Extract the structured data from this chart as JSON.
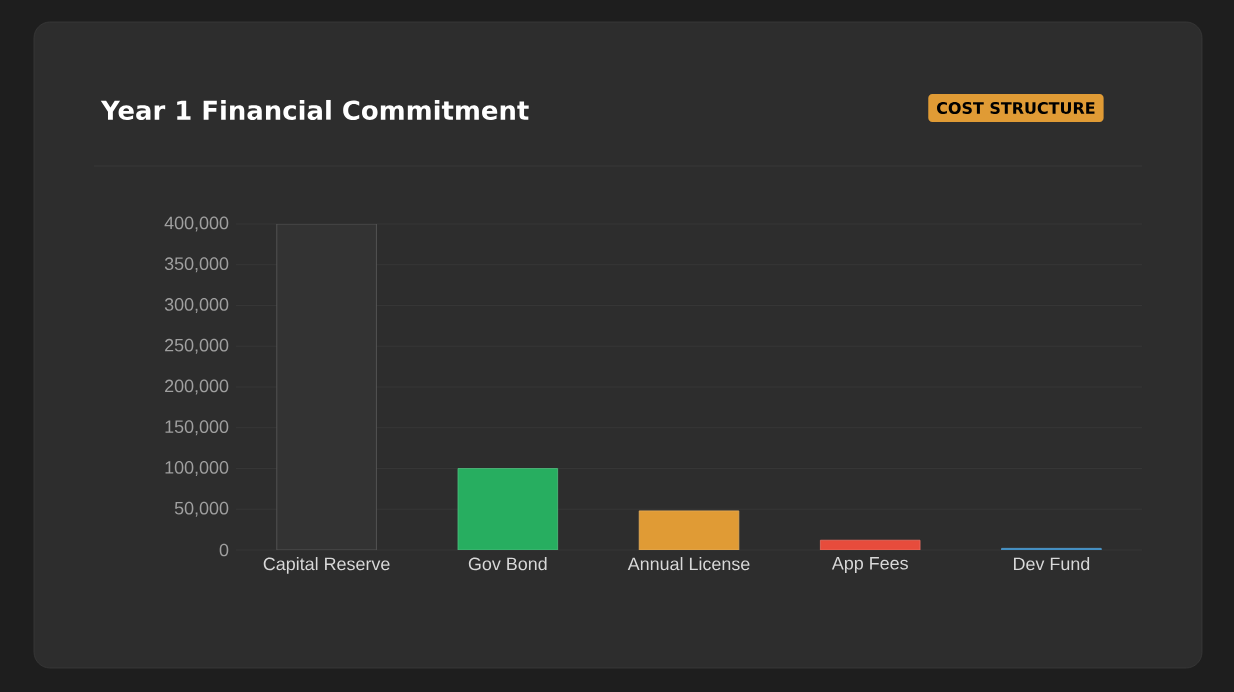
{
  "chart_data": {
    "type": "bar",
    "title": "Year 1 Financial Commitment",
    "annotations": [
      "COST STRUCTURE"
    ],
    "categories": [
      "Capital Reserve",
      "Gov Bond",
      "Annual License",
      "App Fees",
      "Dev Fund"
    ],
    "values": [
      400000,
      100000,
      48000,
      12000,
      2000
    ],
    "colors": [
      "#333333",
      "#27ae60",
      "#e09b35",
      "#e74c3c",
      "#2e86c1"
    ],
    "ylim": [
      0,
      400000
    ],
    "yticks": [
      {
        "value": 0,
        "label": "0"
      },
      {
        "value": 50000,
        "label": "50,000"
      },
      {
        "value": 100000,
        "label": "100,000"
      },
      {
        "value": 150000,
        "label": "150,000"
      },
      {
        "value": 200000,
        "label": "200,000"
      },
      {
        "value": 250000,
        "label": "250,000"
      },
      {
        "value": 300000,
        "label": "300,000"
      },
      {
        "value": 350000,
        "label": "350,000"
      },
      {
        "value": 400000,
        "label": "400,000"
      }
    ],
    "grid": "y"
  }
}
